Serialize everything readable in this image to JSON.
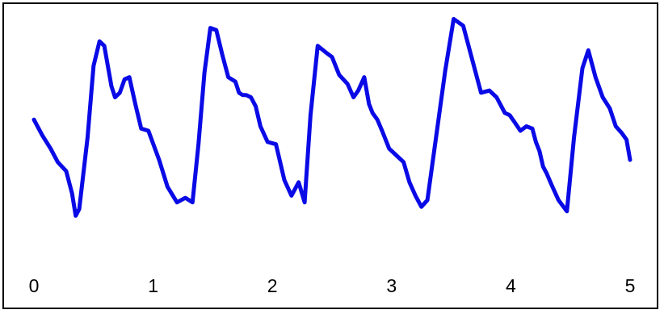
{
  "chart_data": {
    "type": "line",
    "title": "",
    "xlabel": "",
    "ylabel": "",
    "xlim": [
      0,
      5
    ],
    "ylim": [
      0,
      1
    ],
    "grid": false,
    "legend": "none",
    "x_ticks": [
      "0",
      "1",
      "2",
      "3",
      "4",
      "5"
    ],
    "line_color": "#0a0ae6",
    "series": [
      {
        "x": [
          0.0,
          0.07,
          0.14,
          0.2,
          0.27,
          0.32,
          0.35,
          0.38,
          0.45,
          0.5,
          0.55,
          0.59,
          0.62,
          0.65,
          0.68,
          0.72,
          0.76,
          0.8,
          0.85,
          0.9,
          0.96,
          1.05,
          1.12,
          1.2,
          1.27,
          1.33,
          1.38,
          1.43,
          1.48,
          1.53,
          1.58,
          1.63,
          1.69,
          1.72,
          1.75,
          1.78,
          1.82,
          1.86,
          1.9,
          1.96,
          2.03,
          2.1,
          2.16,
          2.22,
          2.27,
          2.32,
          2.38,
          2.45,
          2.5,
          2.56,
          2.63,
          2.68,
          2.72,
          2.77,
          2.81,
          2.84,
          2.88,
          2.92,
          2.98,
          3.04,
          3.1,
          3.15,
          3.2,
          3.25,
          3.3,
          3.37,
          3.45,
          3.52,
          3.6,
          3.68,
          3.75,
          3.82,
          3.88,
          3.95,
          3.99,
          4.03,
          4.08,
          4.13,
          4.18,
          4.21,
          4.24,
          4.27,
          4.3,
          4.34,
          4.4,
          4.47,
          4.53,
          4.6,
          4.65,
          4.71,
          4.77,
          4.83,
          4.88,
          4.93,
          4.97,
          5.0
        ],
        "y": [
          0.53,
          0.46,
          0.4,
          0.34,
          0.3,
          0.2,
          0.1,
          0.13,
          0.45,
          0.77,
          0.88,
          0.86,
          0.77,
          0.68,
          0.63,
          0.65,
          0.71,
          0.72,
          0.6,
          0.49,
          0.48,
          0.35,
          0.23,
          0.16,
          0.18,
          0.16,
          0.42,
          0.74,
          0.94,
          0.93,
          0.82,
          0.72,
          0.7,
          0.65,
          0.64,
          0.64,
          0.63,
          0.59,
          0.5,
          0.43,
          0.42,
          0.26,
          0.19,
          0.25,
          0.16,
          0.55,
          0.86,
          0.83,
          0.81,
          0.73,
          0.69,
          0.63,
          0.66,
          0.72,
          0.6,
          0.56,
          0.53,
          0.48,
          0.4,
          0.37,
          0.34,
          0.25,
          0.19,
          0.14,
          0.17,
          0.44,
          0.75,
          0.98,
          0.95,
          0.79,
          0.65,
          0.66,
          0.63,
          0.56,
          0.55,
          0.52,
          0.48,
          0.5,
          0.49,
          0.43,
          0.39,
          0.32,
          0.29,
          0.24,
          0.17,
          0.12,
          0.45,
          0.76,
          0.84,
          0.72,
          0.63,
          0.58,
          0.5,
          0.47,
          0.44,
          0.35
        ]
      }
    ]
  }
}
